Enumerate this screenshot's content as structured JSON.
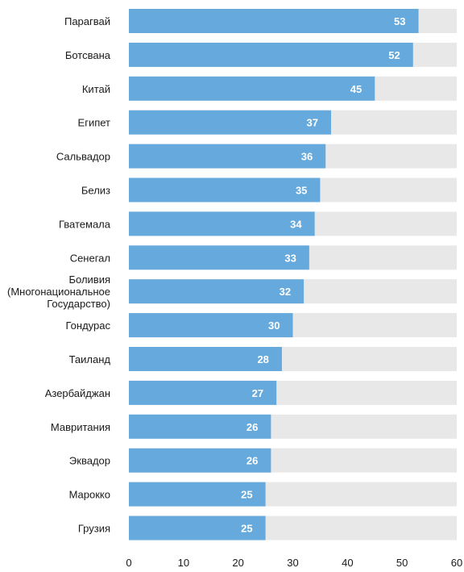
{
  "chart_data": {
    "type": "bar",
    "orientation": "horizontal",
    "categories": [
      [
        "Парагвай"
      ],
      [
        "Ботсвана"
      ],
      [
        "Китай"
      ],
      [
        "Египет"
      ],
      [
        "Сальвадор"
      ],
      [
        "Белиз"
      ],
      [
        "Гватемала"
      ],
      [
        "Сенегал"
      ],
      [
        "Боливия",
        "(Многонациональное",
        "Государство)"
      ],
      [
        "Гондурас"
      ],
      [
        "Таиланд"
      ],
      [
        "Азербайджан"
      ],
      [
        "Мавритания"
      ],
      [
        "Эквадор"
      ],
      [
        "Марокко"
      ],
      [
        "Грузия"
      ]
    ],
    "values": [
      53,
      52,
      45,
      37,
      36,
      35,
      34,
      33,
      32,
      30,
      28,
      27,
      26,
      26,
      25,
      25
    ],
    "xlim": [
      0,
      60
    ],
    "xticks": [
      0,
      10,
      20,
      30,
      40,
      50,
      60
    ],
    "grid": false,
    "background_track": true,
    "colors": {
      "bar": "#66aadd",
      "track": "#e8e8e8",
      "value_text": "#ffffff",
      "text": "#1a1a1a"
    }
  }
}
